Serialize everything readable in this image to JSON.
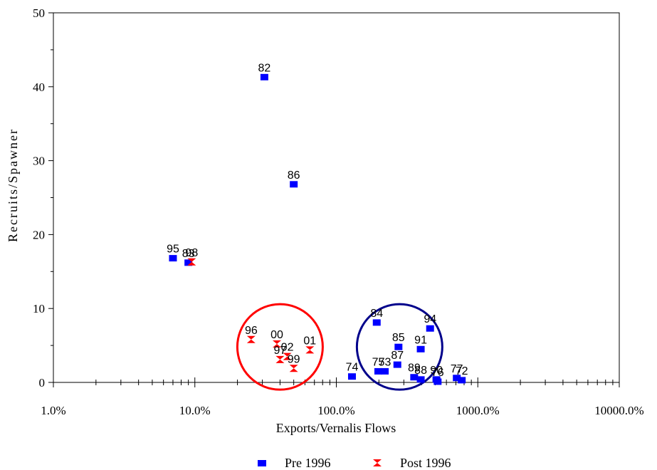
{
  "chart_data": {
    "type": "scatter",
    "title": "",
    "xlabel": "Exports/Vernalis Flows",
    "ylabel": "Recruits/Spawner",
    "xscale": "log",
    "xlim": [
      0.01,
      100
    ],
    "ylim": [
      0,
      50
    ],
    "x_ticks": [
      0.01,
      0.1,
      1,
      10,
      100
    ],
    "x_tick_labels": [
      "1.0%",
      "10.0%",
      "100.0%",
      "1000.0%",
      "10000.0%"
    ],
    "y_ticks": [
      0,
      10,
      20,
      30,
      40,
      50
    ],
    "y_tick_labels": [
      "0",
      "10",
      "20",
      "30",
      "40",
      "50"
    ],
    "legend_position": "bottom-center",
    "series": [
      {
        "name": "Pre 1996",
        "marker": "square",
        "color": "#0000ff",
        "points": [
          {
            "label": "82",
            "x": 0.31,
            "y": 41.3
          },
          {
            "label": "86",
            "x": 0.5,
            "y": 26.8
          },
          {
            "label": "95",
            "x": 0.07,
            "y": 16.8
          },
          {
            "label": "83",
            "x": 0.09,
            "y": 16.2
          },
          {
            "label": "84",
            "x": 1.93,
            "y": 8.1
          },
          {
            "label": "94",
            "x": 4.6,
            "y": 7.3
          },
          {
            "label": "85",
            "x": 2.75,
            "y": 4.8
          },
          {
            "label": "91",
            "x": 3.95,
            "y": 4.5
          },
          {
            "label": "87",
            "x": 2.7,
            "y": 2.4
          },
          {
            "label": "74",
            "x": 1.29,
            "y": 0.8
          },
          {
            "label": "75",
            "x": 1.98,
            "y": 1.5
          },
          {
            "label": "73",
            "x": 2.2,
            "y": 1.5
          },
          {
            "label": "89",
            "x": 3.55,
            "y": 0.7
          },
          {
            "label": "88",
            "x": 3.95,
            "y": 0.4
          },
          {
            "label": "90",
            "x": 5.1,
            "y": 0.4
          },
          {
            "label": "76",
            "x": 5.2,
            "y": 0.1
          },
          {
            "label": "77",
            "x": 7.1,
            "y": 0.6
          },
          {
            "label": "72",
            "x": 7.7,
            "y": 0.3
          }
        ]
      },
      {
        "name": "Post 1996",
        "marker": "hourglass",
        "color": "#ff0000",
        "points": [
          {
            "label": "98",
            "x": 0.095,
            "y": 16.3
          },
          {
            "label": "96",
            "x": 0.25,
            "y": 5.8
          },
          {
            "label": "00",
            "x": 0.38,
            "y": 5.2
          },
          {
            "label": "02",
            "x": 0.45,
            "y": 3.5
          },
          {
            "label": "97",
            "x": 0.4,
            "y": 3.1
          },
          {
            "label": "99",
            "x": 0.5,
            "y": 1.9
          },
          {
            "label": "01",
            "x": 0.65,
            "y": 4.4
          }
        ]
      }
    ],
    "annotations": [
      {
        "shape": "circle",
        "color": "#ff0000",
        "cx": 0.4,
        "cy": 4.8
      },
      {
        "shape": "circle",
        "color": "#00008b",
        "cx": 2.8,
        "cy": 4.8
      }
    ]
  }
}
